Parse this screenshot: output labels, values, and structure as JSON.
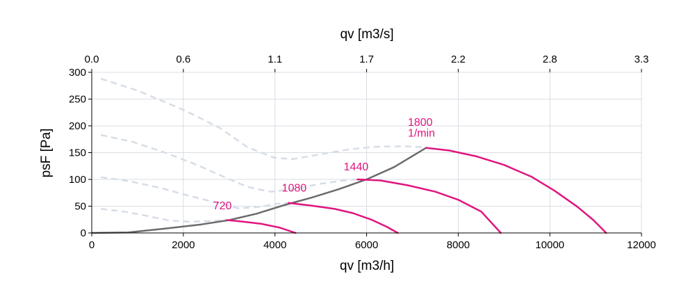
{
  "chart_data": {
    "type": "line",
    "title": "",
    "xlabel": "qv [m3/h]",
    "x2label": "qv [m3/s]",
    "ylabel": "psF [Pa]",
    "xlim": [
      0,
      12000
    ],
    "ylim": [
      0,
      300
    ],
    "grid": true,
    "x_ticks": [
      "0",
      "2000",
      "4000",
      "6000",
      "8000",
      "10000",
      "12000"
    ],
    "x_tick_values": [
      0,
      2000,
      4000,
      6000,
      8000,
      10000,
      12000
    ],
    "x2_ticks": [
      "0.0",
      "0.6",
      "1.1",
      "1.7",
      "2.2",
      "2.8",
      "3.3"
    ],
    "y_ticks": [
      "0",
      "50",
      "100",
      "150",
      "200",
      "250",
      "300"
    ],
    "y_tick_values": [
      0,
      50,
      100,
      150,
      200,
      250,
      300
    ],
    "colors": {
      "curve": "#e0157f",
      "system": "#6b6b6b",
      "dashed": "#d6dde6",
      "grid": "#d9dde3"
    },
    "speed_labels": [
      {
        "text": "720",
        "x": 2650,
        "y": 44
      },
      {
        "text": "1080",
        "x": 4150,
        "y": 77
      },
      {
        "text": "1440",
        "x": 5500,
        "y": 117
      },
      {
        "text": "1800",
        "x": 6900,
        "y": 200
      },
      {
        "text": "1/min",
        "x": 6900,
        "y": 180
      }
    ],
    "series": [
      {
        "name": "720",
        "style": "solid",
        "x": [
          2950,
          3300,
          3700,
          4100,
          4450
        ],
        "y": [
          24,
          21,
          17,
          10,
          0
        ]
      },
      {
        "name": "1080",
        "style": "solid",
        "x": [
          4300,
          4800,
          5300,
          5700,
          6100,
          6450,
          6680
        ],
        "y": [
          56,
          51,
          45,
          37,
          25,
          11,
          0
        ]
      },
      {
        "name": "1440",
        "style": "solid",
        "x": [
          5800,
          6300,
          6900,
          7500,
          8000,
          8500,
          8930
        ],
        "y": [
          100,
          98,
          89,
          77,
          62,
          40,
          0
        ]
      },
      {
        "name": "1800",
        "style": "solid",
        "x": [
          7300,
          7800,
          8400,
          9000,
          9600,
          10100,
          10600,
          10950,
          11230
        ],
        "y": [
          159,
          154,
          143,
          127,
          105,
          79,
          49,
          24,
          0
        ]
      },
      {
        "name": "",
        "style": "system",
        "x": [
          0,
          800,
          1600,
          2400,
          3000,
          3600,
          4200,
          4800,
          5400,
          6000,
          6600,
          7300
        ],
        "y": [
          0,
          1,
          8,
          16,
          24,
          36,
          52,
          66,
          82,
          100,
          123,
          159
        ]
      },
      {
        "name": "",
        "style": "dashed",
        "x": [
          200,
          1000,
          2000,
          2800,
          3400,
          4000,
          4400,
          5000,
          5600,
          6200,
          6800,
          7300
        ],
        "y": [
          288,
          266,
          230,
          196,
          160,
          140,
          138,
          147,
          156,
          161,
          162,
          160
        ]
      },
      {
        "name": "",
        "style": "dashed",
        "x": [
          200,
          900,
          1600,
          2300,
          2900,
          3400,
          3900,
          4400,
          5000,
          5500,
          5800
        ],
        "y": [
          183,
          170,
          150,
          127,
          104,
          86,
          77,
          82,
          92,
          98,
          100
        ]
      },
      {
        "name": "",
        "style": "dashed",
        "x": [
          200,
          800,
          1500,
          2100,
          2700,
          3200,
          3700,
          4000,
          4300
        ],
        "y": [
          104,
          97,
          84,
          70,
          57,
          46,
          49,
          54,
          56
        ]
      },
      {
        "name": "",
        "style": "dashed",
        "x": [
          200,
          700,
          1200,
          1700,
          2100,
          2500,
          2950
        ],
        "y": [
          45,
          40,
          32,
          23,
          21,
          22,
          24
        ]
      }
    ]
  }
}
